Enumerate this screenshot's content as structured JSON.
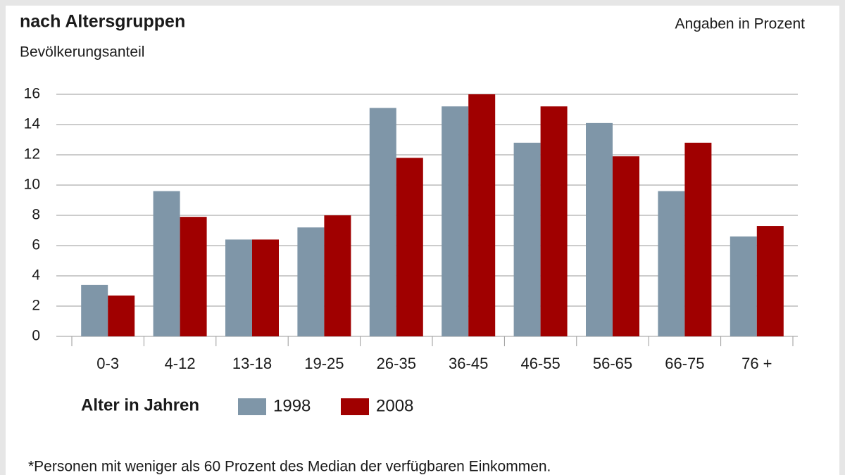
{
  "chart_data": {
    "type": "bar",
    "title": "nach Altersgruppen",
    "subtitle": "Bevölkerungsanteil",
    "unit_note": "Angaben in Prozent",
    "xlabel": "Alter in Jahren",
    "footnote": "*Personen mit weniger als 60 Prozent des Median der verfügbaren Einkommen.",
    "categories": [
      "0-3",
      "4-12",
      "13-18",
      "19-25",
      "26-35",
      "36-45",
      "46-55",
      "56-65",
      "66-75",
      "76 +"
    ],
    "series": [
      {
        "name": "1998",
        "color": "#7f96a8",
        "values": [
          3.4,
          9.6,
          6.4,
          7.2,
          15.1,
          15.2,
          12.8,
          14.1,
          9.6,
          6.6
        ]
      },
      {
        "name": "2008",
        "color": "#a00000",
        "values": [
          2.7,
          7.9,
          6.4,
          8.0,
          11.8,
          16.0,
          15.2,
          11.9,
          12.8,
          7.3
        ]
      }
    ],
    "ylim": [
      0,
      16
    ],
    "yticks": [
      0,
      2,
      4,
      6,
      8,
      10,
      12,
      14,
      16
    ],
    "grid": true
  }
}
